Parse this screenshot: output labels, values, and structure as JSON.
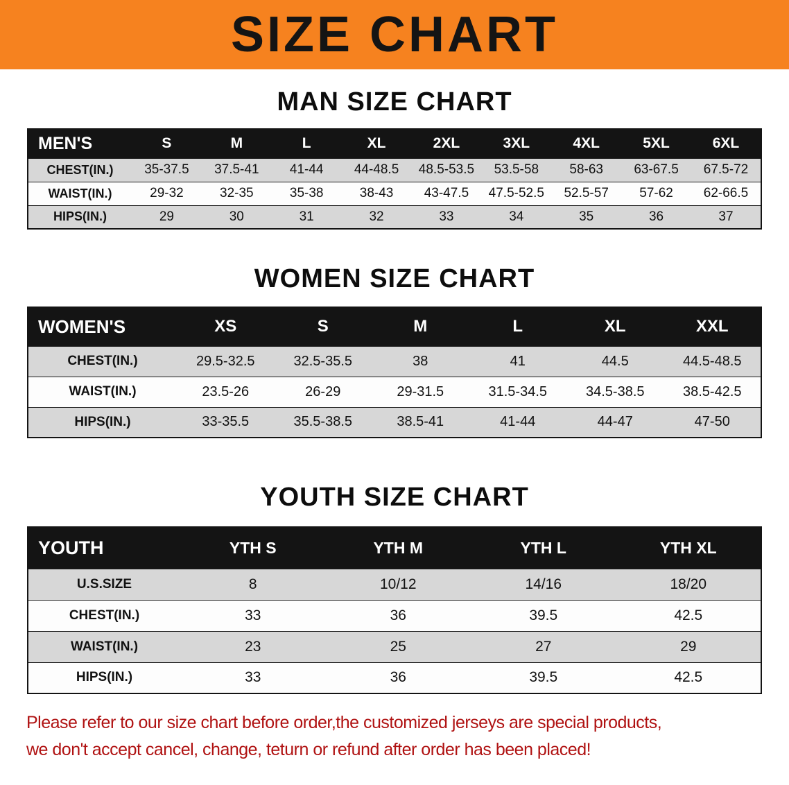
{
  "banner": {
    "title": "SIZE CHART",
    "bg_color": "#f6821f",
    "text_color": "#141414"
  },
  "chart_data": [
    {
      "type": "table",
      "title": "MAN SIZE CHART",
      "columns": [
        "MEN'S",
        "S",
        "M",
        "L",
        "XL",
        "2XL",
        "3XL",
        "4XL",
        "5XL",
        "6XL"
      ],
      "rows": [
        [
          "CHEST(IN.)",
          "35-37.5",
          "37.5-41",
          "41-44",
          "44-48.5",
          "48.5-53.5",
          "53.5-58",
          "58-63",
          "63-67.5",
          "67.5-72"
        ],
        [
          "WAIST(IN.)",
          "29-32",
          "32-35",
          "35-38",
          "38-43",
          "43-47.5",
          "47.5-52.5",
          "52.5-57",
          "57-62",
          "62-66.5"
        ],
        [
          "HIPS(IN.)",
          "29",
          "30",
          "31",
          "32",
          "33",
          "34",
          "35",
          "36",
          "37"
        ]
      ]
    },
    {
      "type": "table",
      "title": "WOMEN SIZE CHART",
      "columns": [
        "WOMEN'S",
        "XS",
        "S",
        "M",
        "L",
        "XL",
        "XXL"
      ],
      "rows": [
        [
          "CHEST(IN.)",
          "29.5-32.5",
          "32.5-35.5",
          "38",
          "41",
          "44.5",
          "44.5-48.5"
        ],
        [
          "WAIST(IN.)",
          "23.5-26",
          "26-29",
          "29-31.5",
          "31.5-34.5",
          "34.5-38.5",
          "38.5-42.5"
        ],
        [
          "HIPS(IN.)",
          "33-35.5",
          "35.5-38.5",
          "38.5-41",
          "41-44",
          "44-47",
          "47-50"
        ]
      ]
    },
    {
      "type": "table",
      "title": "YOUTH SIZE CHART",
      "columns": [
        "YOUTH",
        "YTH S",
        "YTH M",
        "YTH L",
        "YTH XL"
      ],
      "rows": [
        [
          "U.S.SIZE",
          "8",
          "10/12",
          "14/16",
          "18/20"
        ],
        [
          "CHEST(IN.)",
          "33",
          "36",
          "39.5",
          "42.5"
        ],
        [
          "WAIST(IN.)",
          "23",
          "25",
          "27",
          "29"
        ],
        [
          "HIPS(IN.)",
          "33",
          "36",
          "39.5",
          "42.5"
        ]
      ]
    }
  ],
  "footer": {
    "line1": "Please refer to our size chart before order,the customized jerseys are special products,",
    "line2": "we don't accept cancel, change, teturn or refund after order has been placed!",
    "text_color": "#b01212"
  }
}
